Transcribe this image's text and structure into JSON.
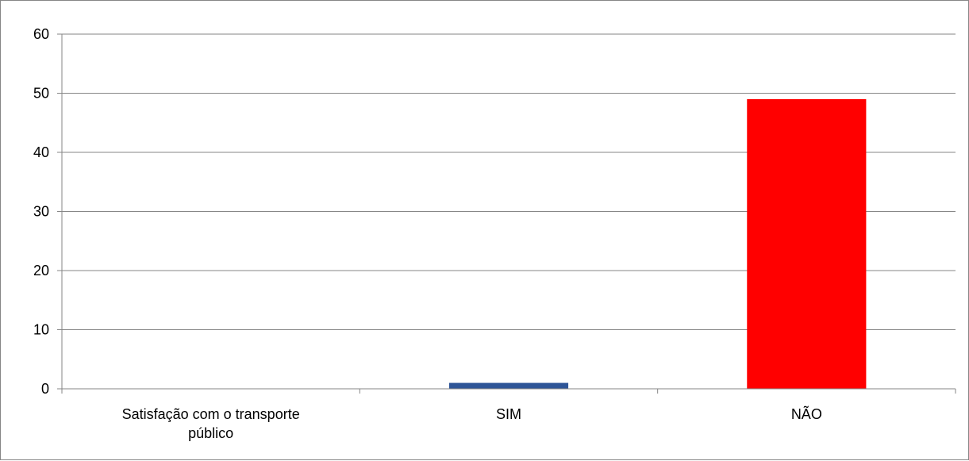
{
  "chart_data": {
    "type": "bar",
    "title": "",
    "xlabel": "",
    "ylabel": "",
    "categories": [
      [
        "Satisfação  com o transporte",
        "público"
      ],
      [
        "SIM"
      ],
      [
        "NÃO"
      ]
    ],
    "values": [
      0,
      1,
      49
    ],
    "bar_colors": [
      "#4F81BD",
      "#2E5597",
      "#FF0000"
    ],
    "ylim": [
      0,
      60
    ],
    "yticks": [
      "0",
      "10",
      "20",
      "30",
      "40",
      "50",
      "60"
    ],
    "grid": true,
    "legend": "none"
  }
}
